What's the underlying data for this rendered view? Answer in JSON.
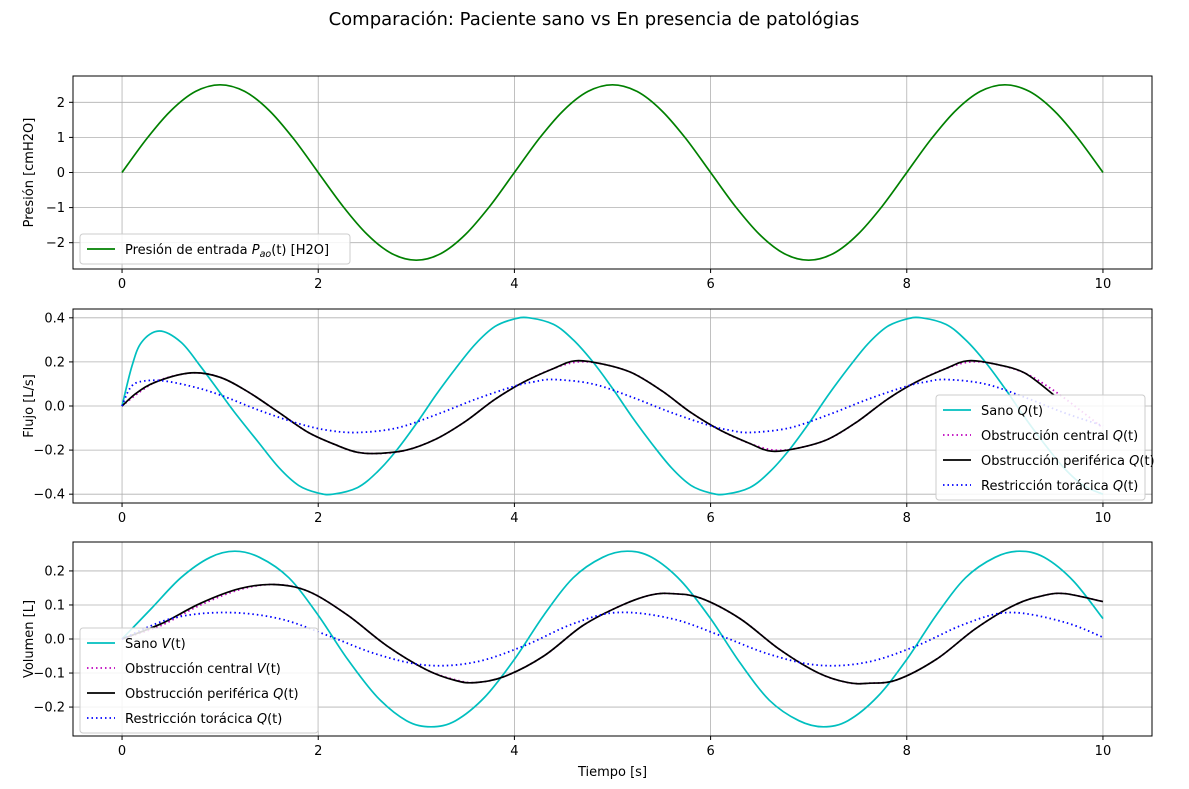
{
  "figure": {
    "suptitle": "Comparación: Paciente sano vs En presencia de patológias"
  },
  "colors": {
    "green": "#008000",
    "cyan": "#00bfbf",
    "magenta": "#bf00bf",
    "black": "#000000",
    "blue": "#0000ff",
    "grid": "#b0b0b0",
    "legend_border": "#cccccc"
  },
  "chart_data": [
    {
      "type": "line",
      "title": "",
      "xlabel": "",
      "ylabel": "Presión [cmH2O]",
      "xlim": [
        -0.5,
        10.5
      ],
      "ylim": [
        -2.75,
        2.75
      ],
      "xticks": [
        0,
        2,
        4,
        6,
        8,
        10
      ],
      "yticks": [
        -2,
        -1,
        0,
        1,
        2
      ],
      "ytick_labels": [
        "−2",
        "−1",
        "0",
        "1",
        "2"
      ],
      "grid": true,
      "legend_position": "lower left",
      "series": [
        {
          "name": "Presión de entrada P_ao(t) [H2O]",
          "legend_main": "Presión de entrada ",
          "legend_var": "P",
          "legend_sub": "ao",
          "legend_tail": "(t) [H2O]",
          "color": "#008000",
          "style": "solid",
          "x": [
            0,
            0.25,
            0.5,
            0.75,
            1,
            1.25,
            1.5,
            1.75,
            2,
            2.25,
            2.5,
            2.75,
            3,
            3.25,
            3.5,
            3.75,
            4,
            4.25,
            4.5,
            4.75,
            5,
            5.25,
            5.5,
            5.75,
            6,
            6.25,
            6.5,
            6.75,
            7,
            7.25,
            7.5,
            7.75,
            8,
            8.25,
            8.5,
            8.75,
            9,
            9.25,
            9.5,
            9.75,
            10
          ],
          "y": [
            0,
            0.957,
            1.768,
            2.31,
            2.5,
            2.31,
            1.768,
            0.957,
            0,
            -0.957,
            -1.768,
            -2.31,
            -2.5,
            -2.31,
            -1.768,
            -0.957,
            0,
            0.957,
            1.768,
            2.31,
            2.5,
            2.31,
            1.768,
            0.957,
            0,
            -0.957,
            -1.768,
            -2.31,
            -2.5,
            -2.31,
            -1.768,
            -0.957,
            0,
            0.957,
            1.768,
            2.31,
            2.5,
            2.31,
            1.768,
            0.957,
            0
          ]
        }
      ]
    },
    {
      "type": "line",
      "title": "",
      "xlabel": "",
      "ylabel": "Flujo [L/s]",
      "xlim": [
        -0.5,
        10.5
      ],
      "ylim": [
        -0.44,
        0.44
      ],
      "xticks": [
        0,
        2,
        4,
        6,
        8,
        10
      ],
      "yticks": [
        -0.4,
        -0.2,
        0.0,
        0.2,
        0.4
      ],
      "ytick_labels": [
        "−0.4",
        "−0.2",
        "0.0",
        "0.2",
        "0.4"
      ],
      "grid": true,
      "legend_position": "lower right",
      "series": [
        {
          "name": "Sano Q(t)",
          "legend_main": "Sano ",
          "legend_var": "Q",
          "legend_sub": "",
          "legend_tail": "(t)",
          "color": "#00bfbf",
          "style": "solid",
          "x": [
            0,
            0.1,
            0.2,
            0.38,
            0.6,
            0.8,
            1.0,
            1.15,
            1.4,
            1.6,
            1.8,
            2.0,
            2.15,
            2.4,
            2.6,
            2.8,
            3.0,
            3.2,
            3.4,
            3.6,
            3.8,
            4.0,
            4.15,
            4.4,
            4.6,
            4.8,
            5.0,
            5.2,
            5.4,
            5.6,
            5.8,
            6.0,
            6.15,
            6.4,
            6.6,
            6.8,
            7.0,
            7.2,
            7.4,
            7.6,
            7.8,
            8.0,
            8.15,
            8.4,
            8.6,
            8.8,
            9.0,
            9.2,
            9.4,
            9.6,
            9.8,
            10.0
          ],
          "y": [
            0,
            0.18,
            0.29,
            0.34,
            0.29,
            0.18,
            0.06,
            -0.03,
            -0.17,
            -0.28,
            -0.36,
            -0.395,
            -0.4,
            -0.37,
            -0.3,
            -0.2,
            -0.08,
            0.05,
            0.17,
            0.28,
            0.36,
            0.395,
            0.4,
            0.37,
            0.3,
            0.2,
            0.08,
            -0.05,
            -0.17,
            -0.28,
            -0.36,
            -0.395,
            -0.4,
            -0.37,
            -0.3,
            -0.2,
            -0.08,
            0.05,
            0.17,
            0.28,
            0.36,
            0.395,
            0.4,
            0.37,
            0.3,
            0.2,
            0.08,
            -0.05,
            -0.17,
            -0.28,
            -0.36,
            -0.4
          ]
        },
        {
          "name": "Obstrucción central Q(t)",
          "legend_main": "Obstrucción central ",
          "legend_var": "Q",
          "legend_sub": "",
          "legend_tail": "(t)",
          "color": "#bf00bf",
          "style": "dotted",
          "x": [
            0,
            0.2,
            0.4,
            0.72,
            1.0,
            1.3,
            1.6,
            1.9,
            2.2,
            2.4,
            2.65,
            2.9,
            3.2,
            3.5,
            3.8,
            4.1,
            4.4,
            4.65,
            4.9,
            5.2,
            5.5,
            5.8,
            6.1,
            6.4,
            6.65,
            6.9,
            7.2,
            7.5,
            7.8,
            8.1,
            8.4,
            8.65,
            8.9,
            9.2,
            9.5,
            9.8,
            10.0
          ],
          "y": [
            0,
            0.07,
            0.12,
            0.15,
            0.13,
            0.06,
            -0.03,
            -0.12,
            -0.18,
            -0.21,
            -0.215,
            -0.2,
            -0.15,
            -0.07,
            0.03,
            0.11,
            0.17,
            0.2,
            0.19,
            0.15,
            0.07,
            -0.03,
            -0.11,
            -0.17,
            -0.2,
            -0.19,
            -0.15,
            -0.07,
            0.03,
            0.11,
            0.17,
            0.2,
            0.19,
            0.15,
            0.07,
            -0.03,
            -0.1
          ]
        },
        {
          "name": "Obstrucción periférica Q(t)",
          "legend_main": "Obstrucción periférica ",
          "legend_var": "Q",
          "legend_sub": "",
          "legend_tail": "(t)",
          "color": "#000000",
          "style": "solid",
          "x": [
            0,
            0.15,
            0.35,
            0.7,
            1.0,
            1.3,
            1.6,
            1.9,
            2.2,
            2.4,
            2.62,
            2.9,
            3.2,
            3.5,
            3.8,
            4.1,
            4.4,
            4.62,
            4.9,
            5.2,
            5.5,
            5.8,
            6.1,
            6.4,
            6.62,
            6.9,
            7.2,
            7.5,
            7.8,
            8.1,
            8.4,
            8.62,
            8.9,
            9.2,
            9.5
          ],
          "y": [
            0,
            0.06,
            0.11,
            0.15,
            0.13,
            0.06,
            -0.03,
            -0.12,
            -0.18,
            -0.21,
            -0.215,
            -0.2,
            -0.15,
            -0.07,
            0.03,
            0.11,
            0.17,
            0.205,
            0.19,
            0.15,
            0.07,
            -0.03,
            -0.11,
            -0.17,
            -0.205,
            -0.19,
            -0.15,
            -0.07,
            0.03,
            0.11,
            0.17,
            0.205,
            0.19,
            0.15,
            0.05
          ]
        },
        {
          "name": "Restricción torácica Q(t)",
          "legend_main": "Restricción torácica ",
          "legend_var": "Q",
          "legend_sub": "",
          "legend_tail": "(t)",
          "color": "#0000ff",
          "style": "dotted",
          "x": [
            0,
            0.08,
            0.18,
            0.4,
            0.7,
            1.0,
            1.4,
            1.8,
            2.1,
            2.4,
            2.8,
            3.2,
            3.6,
            4.0,
            4.2,
            4.4,
            4.8,
            5.2,
            5.6,
            6.0,
            6.2,
            6.4,
            6.8,
            7.2,
            7.6,
            8.0,
            8.2,
            8.4,
            8.8,
            9.2,
            9.6,
            10.0
          ],
          "y": [
            0,
            0.08,
            0.11,
            0.115,
            0.09,
            0.05,
            -0.02,
            -0.08,
            -0.11,
            -0.12,
            -0.1,
            -0.04,
            0.03,
            0.09,
            0.11,
            0.12,
            0.1,
            0.04,
            -0.03,
            -0.09,
            -0.11,
            -0.12,
            -0.1,
            -0.04,
            0.03,
            0.09,
            0.11,
            0.12,
            0.1,
            0.04,
            -0.03,
            -0.09
          ]
        }
      ]
    },
    {
      "type": "line",
      "title": "",
      "xlabel": "Tiempo [s]",
      "ylabel": "Volumen [L]",
      "xlim": [
        -0.5,
        10.5
      ],
      "ylim": [
        -0.285,
        0.285
      ],
      "xticks": [
        0,
        2,
        4,
        6,
        8,
        10
      ],
      "yticks": [
        -0.2,
        -0.1,
        0.0,
        0.1,
        0.2
      ],
      "ytick_labels": [
        "−0.2",
        "−0.1",
        "0.0",
        "0.1",
        "0.2"
      ],
      "grid": true,
      "legend_position": "lower left",
      "series": [
        {
          "name": "Sano V(t)",
          "legend_main": "Sano ",
          "legend_var": "V",
          "legend_sub": "",
          "legend_tail": "(t)",
          "color": "#00bfbf",
          "style": "solid",
          "x": [
            0,
            0.3,
            0.6,
            0.9,
            1.15,
            1.4,
            1.7,
            2.0,
            2.3,
            2.6,
            2.9,
            3.15,
            3.4,
            3.7,
            4.0,
            4.3,
            4.6,
            4.9,
            5.15,
            5.4,
            5.7,
            6.0,
            6.3,
            6.6,
            6.9,
            7.15,
            7.4,
            7.7,
            8.0,
            8.3,
            8.6,
            8.9,
            9.15,
            9.4,
            9.7,
            10.0
          ],
          "y": [
            0,
            0.09,
            0.18,
            0.24,
            0.258,
            0.24,
            0.18,
            0.07,
            -0.06,
            -0.17,
            -0.24,
            -0.258,
            -0.24,
            -0.17,
            -0.06,
            0.07,
            0.18,
            0.24,
            0.258,
            0.24,
            0.17,
            0.06,
            -0.07,
            -0.18,
            -0.24,
            -0.258,
            -0.24,
            -0.17,
            -0.06,
            0.07,
            0.18,
            0.24,
            0.258,
            0.24,
            0.17,
            0.06
          ]
        },
        {
          "name": "Obstrucción central V(t)",
          "legend_main": "Obstrucción central ",
          "legend_var": "V",
          "legend_sub": "",
          "legend_tail": "(t)",
          "color": "#bf00bf",
          "style": "dotted",
          "x": [
            0,
            0.4,
            0.8,
            1.2,
            1.55,
            1.9,
            2.3,
            2.7,
            3.1,
            3.4,
            3.6,
            3.9,
            4.3,
            4.7,
            5.1,
            5.4,
            5.62,
            5.9,
            6.3,
            6.7,
            7.1,
            7.4,
            7.62,
            7.9,
            8.3,
            8.7,
            9.1,
            9.4,
            9.62,
            10.0
          ],
          "y": [
            0,
            0.04,
            0.1,
            0.145,
            0.16,
            0.14,
            0.07,
            -0.02,
            -0.09,
            -0.12,
            -0.128,
            -0.11,
            -0.05,
            0.04,
            0.1,
            0.13,
            0.133,
            0.12,
            0.06,
            -0.03,
            -0.1,
            -0.128,
            -0.13,
            -0.12,
            -0.06,
            0.03,
            0.1,
            0.128,
            0.133,
            0.11
          ]
        },
        {
          "name": "Obstrucción periférica Q(t)",
          "legend_main": "Obstrucción periférica ",
          "legend_var": "Q",
          "legend_sub": "",
          "legend_tail": "(t)",
          "color": "#000000",
          "style": "solid",
          "x": [
            0,
            0.4,
            0.8,
            1.2,
            1.55,
            1.9,
            2.3,
            2.7,
            3.1,
            3.4,
            3.6,
            3.9,
            4.3,
            4.7,
            5.1,
            5.4,
            5.62,
            5.9,
            6.3,
            6.7,
            7.1,
            7.4,
            7.62,
            7.9,
            8.3,
            8.7,
            9.1,
            9.4,
            9.62,
            10.0
          ],
          "y": [
            0,
            0.045,
            0.105,
            0.148,
            0.16,
            0.14,
            0.07,
            -0.02,
            -0.09,
            -0.122,
            -0.128,
            -0.11,
            -0.05,
            0.04,
            0.1,
            0.13,
            0.133,
            0.12,
            0.06,
            -0.03,
            -0.1,
            -0.128,
            -0.13,
            -0.12,
            -0.06,
            0.03,
            0.1,
            0.128,
            0.133,
            0.11
          ]
        },
        {
          "name": "Restricción torácica Q(t)",
          "legend_main": "Restricción torácica ",
          "legend_var": "Q",
          "legend_sub": "",
          "legend_tail": "(t)",
          "color": "#0000ff",
          "style": "dotted",
          "x": [
            0,
            0.5,
            1.05,
            1.6,
            2.1,
            2.6,
            3.1,
            3.6,
            4.1,
            4.6,
            5.05,
            5.6,
            6.1,
            6.6,
            7.1,
            7.6,
            8.1,
            8.6,
            9.05,
            9.6,
            10.0
          ],
          "y": [
            0,
            0.06,
            0.078,
            0.06,
            0.01,
            -0.045,
            -0.077,
            -0.068,
            -0.02,
            0.045,
            0.078,
            0.06,
            0.01,
            -0.045,
            -0.077,
            -0.068,
            -0.02,
            0.045,
            0.078,
            0.05,
            0.005
          ]
        }
      ]
    }
  ]
}
